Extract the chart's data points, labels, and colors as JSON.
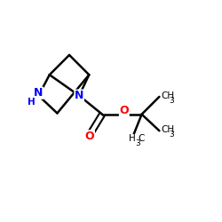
{
  "bg": "#ffffff",
  "bond_color": "#000000",
  "N_color": "#0000ff",
  "O_color": "#ff0000",
  "lw": 1.8,
  "fs": 9.0,
  "fs_sub": 6.5,
  "xlim": [
    0,
    10
  ],
  "ylim": [
    0,
    10
  ]
}
